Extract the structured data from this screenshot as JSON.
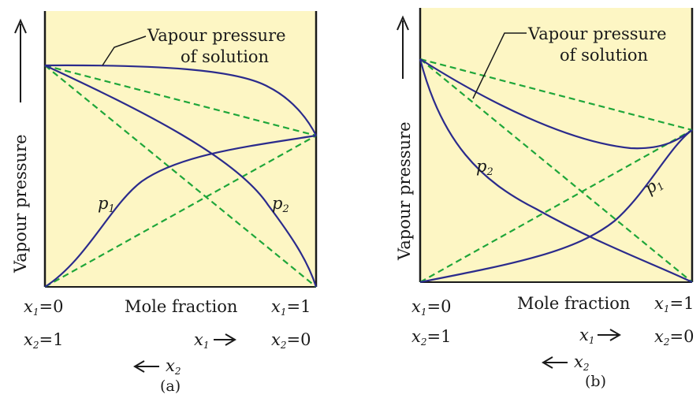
{
  "colors": {
    "panel_fill": "#fdf6c4",
    "curve": "#2b2b8c",
    "dashed": "#1fa63a",
    "frame": "#1a1a1a"
  },
  "panel_a": {
    "y_axis_label": "Vapour pressure",
    "callout": [
      "Vapour pressure",
      "of solution"
    ],
    "label_p1": "p",
    "label_p1_sub": "1",
    "label_p2": "p",
    "label_p2_sub": "2",
    "x_axis_label": "Mole fraction",
    "left_x1_var": "x",
    "left_x1_sub": "1",
    "left_x1_val": "=0",
    "left_x2_var": "x",
    "left_x2_sub": "2",
    "left_x2_val": "=1",
    "right_x1_var": "x",
    "right_x1_sub": "1",
    "right_x1_val": "=1",
    "right_x2_var": "x",
    "right_x2_sub": "2",
    "right_x2_val": "=0",
    "arrow_x1_var": "x",
    "arrow_x1_sub": "1",
    "arrow_x2_var": "x",
    "arrow_x2_sub": "2",
    "caption": "(a)"
  },
  "panel_b": {
    "y_axis_label": "Vapour pressure",
    "callout": [
      "Vapour pressure",
      "of solution"
    ],
    "label_p1": "p",
    "label_p1_sub": "1",
    "label_p2": "p",
    "label_p2_sub": "2",
    "x_axis_label": "Mole fraction",
    "left_x1_var": "x",
    "left_x1_sub": "1",
    "left_x1_val": "=0",
    "left_x2_var": "x",
    "left_x2_sub": "2",
    "left_x2_val": "=1",
    "right_x1_var": "x",
    "right_x1_sub": "1",
    "right_x1_val": "=1",
    "right_x2_var": "x",
    "right_x2_sub": "2",
    "right_x2_val": "=0",
    "arrow_x1_var": "x",
    "arrow_x1_sub": "1",
    "arrow_x2_var": "x",
    "arrow_x2_sub": "2",
    "caption": "(b)"
  }
}
